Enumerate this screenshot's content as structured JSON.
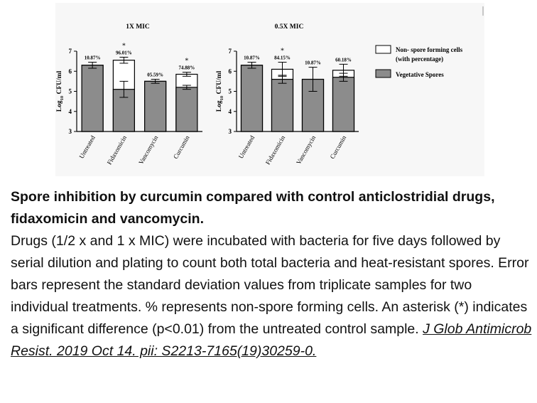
{
  "chart_data": [
    {
      "type": "bar",
      "title": "1X MIC",
      "ylabel": "Log10 CFU/ml",
      "ylim": [
        3,
        7
      ],
      "yticks": [
        3,
        4,
        5,
        6,
        7
      ],
      "categories": [
        "Untreated",
        "Fidaxomicin",
        "Vancomycin",
        "Curcumin"
      ],
      "series": [
        {
          "name": "Vegetative Spores",
          "values": [
            6.3,
            5.1,
            5.5,
            5.2
          ],
          "errors": [
            0.15,
            0.4,
            0.1,
            0.1
          ]
        },
        {
          "name": "Non- spore forming cells (with percentage)",
          "values": [
            6.3,
            6.55,
            5.5,
            5.85
          ],
          "errors": [
            0.15,
            0.15,
            0.1,
            0.1
          ]
        }
      ],
      "labels": [
        "10.87%",
        "96.01%",
        "05.59%",
        "74.88%"
      ],
      "significant": [
        false,
        true,
        false,
        true
      ]
    },
    {
      "type": "bar",
      "title": "0.5X MIC",
      "ylabel": "Log10 CFU/ml",
      "ylim": [
        3,
        7
      ],
      "yticks": [
        3,
        4,
        5,
        6,
        7
      ],
      "categories": [
        "Untreated",
        "Fidaxomicin",
        "Vancomycin",
        "Curcumin"
      ],
      "series": [
        {
          "name": "Vegetative Spores",
          "values": [
            6.3,
            5.6,
            5.6,
            5.7
          ],
          "errors": [
            0.15,
            0.2,
            0.4,
            0.2
          ]
        },
        {
          "name": "Non- spore forming cells (with percentage)",
          "values": [
            6.3,
            6.1,
            5.6,
            6.05
          ],
          "errors": [
            0.15,
            0.35,
            0.6,
            0.3
          ]
        }
      ],
      "labels": [
        "10.87%",
        "84.15%",
        "10.87%",
        "60.18%"
      ],
      "significant": [
        false,
        true,
        false,
        false
      ]
    }
  ],
  "legend": {
    "non_spore_line1": "Non- spore forming cells",
    "non_spore_line2": "(with percentage)",
    "vegetative": "Vegetative Spores",
    "non_spore_color": "#ffffff",
    "vegetative_color": "#8c8c8c"
  },
  "caption": {
    "title": "Spore inhibition by curcumin compared with control anticlostridial drugs, fidaxomicin and vancomycin.",
    "body": "Drugs (1/2 x and 1 x MIC) were incubated with bacteria for five days followed by serial dilution and plating to count both total bacteria and heat-resistant spores. Error bars represent the standard deviation values from triplicate samples for two individual treatments. % represents non-spore forming cells. An asterisk (*) indicates a significant difference (p<0.01) from the untreated control sample.",
    "reference": "J Glob Antimicrob Resist. 2019 Oct 14. pii: S2213-7165(19)30259-0."
  }
}
